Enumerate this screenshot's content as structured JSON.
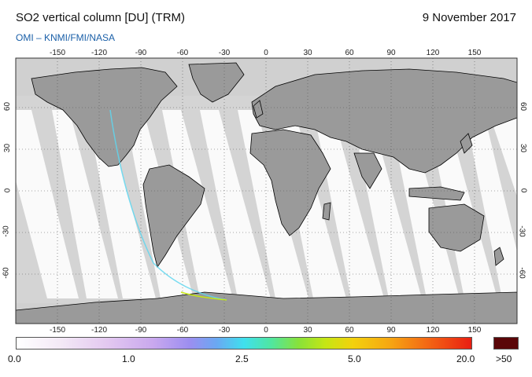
{
  "header": {
    "title": "SO2 vertical column [DU] (TRM)",
    "date": "9 November 2017",
    "source": "OMI  –  KNMI/FMI/NASA"
  },
  "map": {
    "lon_ticks": [
      "-150",
      "-120",
      "-90",
      "-60",
      "-30",
      "0",
      "30",
      "60",
      "90",
      "120",
      "150"
    ],
    "lat_ticks": [
      "60",
      "30",
      "0",
      "-30",
      "-60"
    ],
    "colors": {
      "land": "#9a9a9a",
      "no_data": "#d4d4d4",
      "ocean": "#ffffff",
      "coast": "#000000"
    }
  },
  "colorbar": {
    "labels": [
      "0.0",
      "1.0",
      "2.5",
      "5.0",
      "20.0",
      ">50"
    ]
  }
}
